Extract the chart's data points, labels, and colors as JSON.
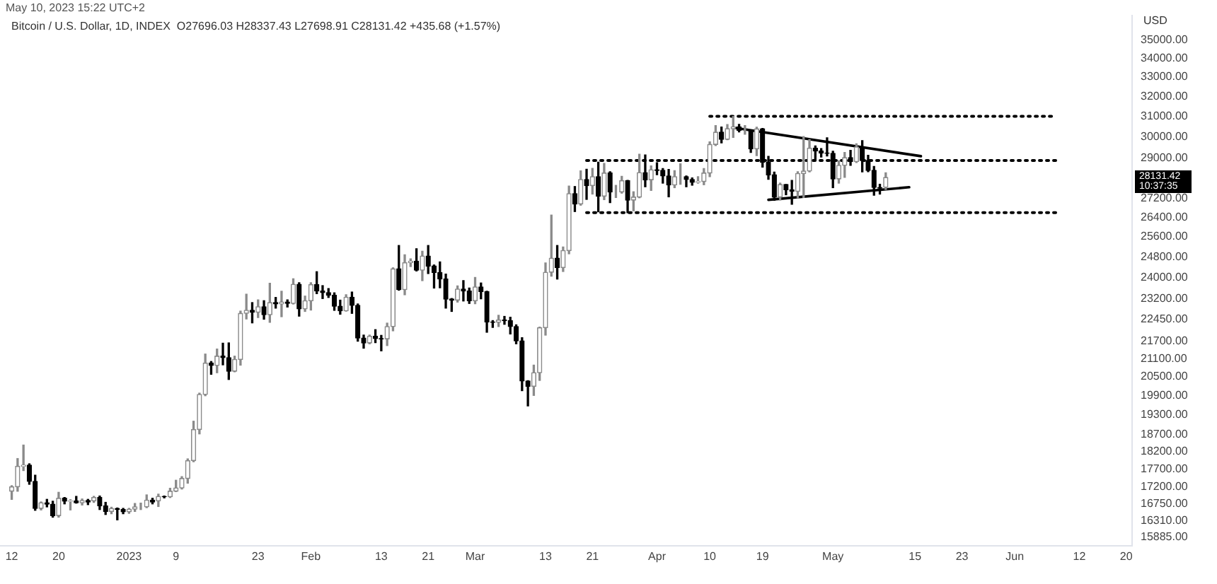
{
  "chart_data": {
    "type": "candlestick",
    "title": "Bitcoin / U.S. Dollar, 1D, INDEX  O27696.03 H28337.43 L27698.91 C28131.42 +435.68 (+1.57%)",
    "subtitle": "May 10, 2023 15:22 UTC+2",
    "ylabel": "USD",
    "log": "y",
    "grid": false,
    "legend": false,
    "x": [
      "2022-12-12",
      "2022-12-13",
      "2022-12-14",
      "2022-12-15",
      "2022-12-16",
      "2022-12-17",
      "2022-12-18",
      "2022-12-19",
      "2022-12-20",
      "2022-12-21",
      "2022-12-22",
      "2022-12-23",
      "2022-12-24",
      "2022-12-25",
      "2022-12-26",
      "2022-12-27",
      "2022-12-28",
      "2022-12-29",
      "2022-12-30",
      "2022-12-31",
      "2023-01-01",
      "2023-01-02",
      "2023-01-03",
      "2023-01-04",
      "2023-01-05",
      "2023-01-06",
      "2023-01-07",
      "2023-01-08",
      "2023-01-09",
      "2023-01-10",
      "2023-01-11",
      "2023-01-12",
      "2023-01-13",
      "2023-01-14",
      "2023-01-15",
      "2023-01-16",
      "2023-01-17",
      "2023-01-18",
      "2023-01-19",
      "2023-01-20",
      "2023-01-21",
      "2023-01-22",
      "2023-01-23",
      "2023-01-24",
      "2023-01-25",
      "2023-01-26",
      "2023-01-27",
      "2023-01-28",
      "2023-01-29",
      "2023-01-30",
      "2023-01-31",
      "2023-02-01",
      "2023-02-02",
      "2023-02-03",
      "2023-02-04",
      "2023-02-05",
      "2023-02-06",
      "2023-02-07",
      "2023-02-08",
      "2023-02-09",
      "2023-02-10",
      "2023-02-11",
      "2023-02-12",
      "2023-02-13",
      "2023-02-14",
      "2023-02-15",
      "2023-02-16",
      "2023-02-17",
      "2023-02-18",
      "2023-02-19",
      "2023-02-20",
      "2023-02-21",
      "2023-02-22",
      "2023-02-23",
      "2023-02-24",
      "2023-02-25",
      "2023-02-26",
      "2023-02-27",
      "2023-02-28",
      "2023-03-01",
      "2023-03-02",
      "2023-03-03",
      "2023-03-04",
      "2023-03-05",
      "2023-03-06",
      "2023-03-07",
      "2023-03-08",
      "2023-03-09",
      "2023-03-10",
      "2023-03-11",
      "2023-03-12",
      "2023-03-13",
      "2023-03-14",
      "2023-03-15",
      "2023-03-16",
      "2023-03-17",
      "2023-03-18",
      "2023-03-19",
      "2023-03-20",
      "2023-03-21",
      "2023-03-22",
      "2023-03-23",
      "2023-03-24",
      "2023-03-25",
      "2023-03-26",
      "2023-03-27",
      "2023-03-28",
      "2023-03-29",
      "2023-03-30",
      "2023-03-31",
      "2023-04-01",
      "2023-04-02",
      "2023-04-03",
      "2023-04-04",
      "2023-04-05",
      "2023-04-06",
      "2023-04-07",
      "2023-04-08",
      "2023-04-09",
      "2023-04-10",
      "2023-04-11",
      "2023-04-12",
      "2023-04-13",
      "2023-04-14",
      "2023-04-15",
      "2023-04-16",
      "2023-04-17",
      "2023-04-18",
      "2023-04-19",
      "2023-04-20",
      "2023-04-21",
      "2023-04-22",
      "2023-04-23",
      "2023-04-24",
      "2023-04-25",
      "2023-04-26",
      "2023-04-27",
      "2023-04-28",
      "2023-04-29",
      "2023-04-30",
      "2023-05-01",
      "2023-05-02",
      "2023-05-03",
      "2023-05-04",
      "2023-05-05",
      "2023-05-06",
      "2023-05-07",
      "2023-05-08",
      "2023-05-09",
      "2023-05-10"
    ],
    "ohlc": [
      [
        17090,
        17240,
        16870,
        17210
      ],
      [
        17210,
        18000,
        17090,
        17780
      ],
      [
        17780,
        18390,
        17660,
        17810
      ],
      [
        17810,
        17850,
        17280,
        17360
      ],
      [
        17360,
        17530,
        16580,
        16630
      ],
      [
        16630,
        16800,
        16590,
        16780
      ],
      [
        16780,
        16870,
        16670,
        16740
      ],
      [
        16740,
        16820,
        16400,
        16440
      ],
      [
        16440,
        17060,
        16400,
        16900
      ],
      [
        16900,
        16920,
        16750,
        16820
      ],
      [
        16820,
        16860,
        16590,
        16830
      ],
      [
        16830,
        16950,
        16770,
        16780
      ],
      [
        16780,
        16880,
        16720,
        16840
      ],
      [
        16840,
        16870,
        16730,
        16800
      ],
      [
        16830,
        16950,
        16790,
        16920
      ],
      [
        16920,
        16960,
        16600,
        16700
      ],
      [
        16700,
        16790,
        16470,
        16550
      ],
      [
        16550,
        16660,
        16490,
        16630
      ],
      [
        16630,
        16640,
        16330,
        16600
      ],
      [
        16600,
        16630,
        16490,
        16540
      ],
      [
        16540,
        16630,
        16500,
        16610
      ],
      [
        16610,
        16760,
        16550,
        16670
      ],
      [
        16670,
        16770,
        16600,
        16670
      ],
      [
        16670,
        16990,
        16650,
        16850
      ],
      [
        16850,
        16900,
        16750,
        16800
      ],
      [
        16830,
        17010,
        16680,
        16950
      ],
      [
        16950,
        16960,
        16910,
        16940
      ],
      [
        16940,
        17170,
        16920,
        17090
      ],
      [
        17090,
        17390,
        17080,
        17180
      ],
      [
        17180,
        17490,
        17150,
        17440
      ],
      [
        17440,
        17990,
        17310,
        17940
      ],
      [
        17940,
        19100,
        17910,
        18850
      ],
      [
        18850,
        19970,
        18720,
        19930
      ],
      [
        19930,
        21250,
        19890,
        20950
      ],
      [
        20950,
        21000,
        20580,
        20870
      ],
      [
        20870,
        21420,
        20630,
        21180
      ],
      [
        21180,
        21620,
        20890,
        21130
      ],
      [
        21130,
        21630,
        20410,
        20680
      ],
      [
        20680,
        21180,
        20660,
        21070
      ],
      [
        21070,
        22750,
        20880,
        22670
      ],
      [
        22670,
        23370,
        22470,
        22780
      ],
      [
        22780,
        23060,
        22330,
        22710
      ],
      [
        22710,
        23160,
        22520,
        22910
      ],
      [
        22910,
        23130,
        22460,
        22620
      ],
      [
        22620,
        23780,
        22350,
        23060
      ],
      [
        23060,
        23250,
        22860,
        23010
      ],
      [
        23010,
        23480,
        22550,
        23080
      ],
      [
        23080,
        23160,
        22900,
        23030
      ],
      [
        23030,
        23950,
        23010,
        23740
      ],
      [
        23740,
        23800,
        22570,
        22830
      ],
      [
        22830,
        23300,
        22740,
        23130
      ],
      [
        23130,
        23800,
        22790,
        23730
      ],
      [
        23730,
        24220,
        23390,
        23490
      ],
      [
        23490,
        23690,
        23210,
        23430
      ],
      [
        23430,
        23580,
        23250,
        23330
      ],
      [
        23330,
        23420,
        22780,
        22930
      ],
      [
        22930,
        23150,
        22640,
        22760
      ],
      [
        22760,
        23350,
        22750,
        23260
      ],
      [
        23260,
        23450,
        22670,
        22960
      ],
      [
        22960,
        23010,
        21690,
        21800
      ],
      [
        21800,
        21900,
        21450,
        21630
      ],
      [
        21630,
        21900,
        21600,
        21860
      ],
      [
        21860,
        22090,
        21640,
        21780
      ],
      [
        21780,
        21890,
        21360,
        21770
      ],
      [
        21770,
        22320,
        21540,
        22200
      ],
      [
        22200,
        24370,
        22050,
        24330
      ],
      [
        24330,
        25250,
        23520,
        23540
      ],
      [
        23540,
        24880,
        23350,
        24570
      ],
      [
        24570,
        24720,
        24420,
        24630
      ],
      [
        24630,
        25120,
        24250,
        24280
      ],
      [
        24280,
        25020,
        23880,
        24830
      ],
      [
        24830,
        25250,
        24150,
        24440
      ],
      [
        24440,
        24480,
        23600,
        24190
      ],
      [
        24190,
        24600,
        23610,
        23940
      ],
      [
        23940,
        24130,
        22860,
        23190
      ],
      [
        23190,
        23210,
        22740,
        23150
      ],
      [
        23150,
        23680,
        23080,
        23560
      ],
      [
        23560,
        23880,
        23120,
        23490
      ],
      [
        23490,
        23600,
        23030,
        23130
      ],
      [
        23130,
        24000,
        23020,
        23640
      ],
      [
        23640,
        23790,
        23200,
        23470
      ],
      [
        23470,
        23480,
        22000,
        22360
      ],
      [
        22360,
        22410,
        22170,
        22350
      ],
      [
        22350,
        22600,
        22200,
        22430
      ],
      [
        22430,
        22560,
        22280,
        22410
      ],
      [
        22410,
        22530,
        21940,
        22200
      ],
      [
        22200,
        22260,
        21600,
        21700
      ],
      [
        21700,
        21810,
        20050,
        20360
      ],
      [
        20360,
        20370,
        19570,
        20190
      ],
      [
        20190,
        20880,
        19900,
        20630
      ],
      [
        20630,
        22180,
        20380,
        22160
      ],
      [
        22160,
        24560,
        21900,
        24200
      ],
      [
        24200,
        26500,
        24050,
        24750
      ],
      [
        24750,
        25250,
        23940,
        24380
      ],
      [
        24380,
        25190,
        24230,
        25050
      ],
      [
        25050,
        27750,
        24920,
        27420
      ],
      [
        27420,
        27730,
        26650,
        26970
      ],
      [
        26970,
        28430,
        26920,
        28040
      ],
      [
        28040,
        28500,
        27170,
        27770
      ],
      [
        27770,
        28540,
        27400,
        28170
      ],
      [
        28170,
        28820,
        26640,
        27310
      ],
      [
        27310,
        28770,
        27160,
        28330
      ],
      [
        28330,
        28390,
        27030,
        27490
      ],
      [
        27490,
        27780,
        27250,
        27490
      ],
      [
        27490,
        28180,
        27440,
        27990
      ],
      [
        27990,
        28000,
        26600,
        27140
      ],
      [
        27140,
        27500,
        26680,
        27270
      ],
      [
        27270,
        29190,
        27240,
        28350
      ],
      [
        28350,
        29160,
        27720,
        28030
      ],
      [
        28030,
        28650,
        27560,
        28480
      ],
      [
        28480,
        28800,
        28260,
        28450
      ],
      [
        28450,
        28530,
        27880,
        28200
      ],
      [
        28200,
        28490,
        27280,
        27800
      ],
      [
        27800,
        28440,
        27680,
        28170
      ],
      [
        28170,
        28750,
        27830,
        28170
      ],
      [
        28170,
        28200,
        27720,
        28040
      ],
      [
        28040,
        28110,
        27790,
        27920
      ],
      [
        27920,
        28170,
        27880,
        27950
      ],
      [
        27950,
        28530,
        27810,
        28330
      ],
      [
        28330,
        29770,
        28170,
        29650
      ],
      [
        29650,
        30550,
        29600,
        30230
      ],
      [
        30230,
        30480,
        29720,
        29890
      ],
      [
        29890,
        30600,
        29870,
        30400
      ],
      [
        30400,
        31000,
        29980,
        30490
      ],
      [
        30490,
        30610,
        30240,
        30320
      ],
      [
        30320,
        30550,
        30130,
        30320
      ],
      [
        30320,
        30320,
        29270,
        29440
      ],
      [
        29440,
        30470,
        29130,
        30390
      ],
      [
        30390,
        30410,
        28600,
        28820
      ],
      [
        28820,
        29090,
        28050,
        28250
      ],
      [
        28250,
        28370,
        27130,
        27270
      ],
      [
        27270,
        27880,
        27140,
        27820
      ],
      [
        27820,
        27820,
        27370,
        27590
      ],
      [
        27590,
        28000,
        26960,
        27520
      ],
      [
        27520,
        28390,
        27230,
        28310
      ],
      [
        28310,
        30020,
        27250,
        28420
      ],
      [
        28420,
        29880,
        28380,
        29470
      ],
      [
        29470,
        29580,
        28900,
        29340
      ],
      [
        29340,
        29450,
        29060,
        29250
      ],
      [
        29250,
        29960,
        29110,
        29230
      ],
      [
        29230,
        29330,
        27680,
        28070
      ],
      [
        28070,
        28890,
        27880,
        28680
      ],
      [
        28680,
        29270,
        28140,
        29030
      ],
      [
        29030,
        29370,
        28680,
        28850
      ],
      [
        28850,
        29680,
        28810,
        29530
      ],
      [
        29530,
        29830,
        28380,
        28900
      ],
      [
        28900,
        29140,
        28390,
        28450
      ],
      [
        28450,
        28630,
        27350,
        27690
      ],
      [
        27690,
        27830,
        27400,
        27660
      ],
      [
        27696.03,
        28337.43,
        27600,
        28131.42
      ]
    ],
    "series": [
      {
        "type": "line",
        "x": [
          "2023-04-10",
          "2023-06-08"
        ],
        "values": [
          31000,
          31000
        ],
        "color": "#000000",
        "line_style": "dotted"
      },
      {
        "type": "line",
        "x": [
          "2023-03-20",
          "2023-06-08"
        ],
        "values": [
          28900,
          28900
        ],
        "color": "#000000",
        "line_style": "dotted"
      },
      {
        "type": "line",
        "x": [
          "2023-03-20",
          "2023-06-08"
        ],
        "values": [
          26600,
          26600
        ],
        "color": "#000000",
        "line_style": "dotted"
      },
      {
        "type": "line",
        "x": [
          "2023-04-14",
          "2023-05-16"
        ],
        "values": [
          30450,
          29100
        ],
        "color": "#000000",
        "line_style": "solid"
      },
      {
        "type": "line",
        "x": [
          "2023-04-20",
          "2023-05-14"
        ],
        "values": [
          27150,
          27700
        ],
        "color": "#000000",
        "line_style": "solid"
      }
    ],
    "xlim": [
      "2022-12-10",
      "2023-06-21"
    ],
    "xticks": [
      {
        "value": "2022-12-12",
        "label": "12"
      },
      {
        "value": "2022-12-20",
        "label": "20"
      },
      {
        "value": "2023-01-01",
        "label": "2023"
      },
      {
        "value": "2023-01-09",
        "label": "9"
      },
      {
        "value": "2023-01-23",
        "label": "23"
      },
      {
        "value": "2023-02-01",
        "label": "Feb"
      },
      {
        "value": "2023-02-13",
        "label": "13"
      },
      {
        "value": "2023-02-21",
        "label": "21"
      },
      {
        "value": "2023-03-01",
        "label": "Mar"
      },
      {
        "value": "2023-03-13",
        "label": "13"
      },
      {
        "value": "2023-03-21",
        "label": "21"
      },
      {
        "value": "2023-04-01",
        "label": "Apr"
      },
      {
        "value": "2023-04-10",
        "label": "10"
      },
      {
        "value": "2023-04-19",
        "label": "19"
      },
      {
        "value": "2023-05-01",
        "label": "May"
      },
      {
        "value": "2023-05-15",
        "label": "15"
      },
      {
        "value": "2023-05-23",
        "label": "23"
      },
      {
        "value": "2023-06-01",
        "label": "Jun"
      },
      {
        "value": "2023-06-12",
        "label": "12"
      },
      {
        "value": "2023-06-20",
        "label": "20"
      }
    ],
    "ylim": [
      15670,
      36400
    ],
    "yticks": [
      {
        "value": 35000,
        "label": "35000.00"
      },
      {
        "value": 34000,
        "label": "34000.00"
      },
      {
        "value": 33000,
        "label": "33000.00"
      },
      {
        "value": 32000,
        "label": "32000.00"
      },
      {
        "value": 31000,
        "label": "31000.00"
      },
      {
        "value": 30000,
        "label": "30000.00"
      },
      {
        "value": 29000,
        "label": "29000.00"
      },
      {
        "value": 27200,
        "label": "27200.00"
      },
      {
        "value": 26400,
        "label": "26400.00"
      },
      {
        "value": 25600,
        "label": "25600.00"
      },
      {
        "value": 24800,
        "label": "24800.00"
      },
      {
        "value": 24000,
        "label": "24000.00"
      },
      {
        "value": 23200,
        "label": "23200.00"
      },
      {
        "value": 22450,
        "label": "22450.00"
      },
      {
        "value": 21700,
        "label": "21700.00"
      },
      {
        "value": 21100,
        "label": "21100.00"
      },
      {
        "value": 20500,
        "label": "20500.00"
      },
      {
        "value": 19900,
        "label": "19900.00"
      },
      {
        "value": 19300,
        "label": "19300.00"
      },
      {
        "value": 18700,
        "label": "18700.00"
      },
      {
        "value": 18200,
        "label": "18200.00"
      },
      {
        "value": 17700,
        "label": "17700.00"
      },
      {
        "value": 17200,
        "label": "17200.00"
      },
      {
        "value": 16750,
        "label": "16750.00"
      },
      {
        "value": 16310,
        "label": "16310.00"
      },
      {
        "value": 15885,
        "label": "15885.00"
      }
    ],
    "annotations": [
      "28131.42\n10:37:35"
    ]
  }
}
